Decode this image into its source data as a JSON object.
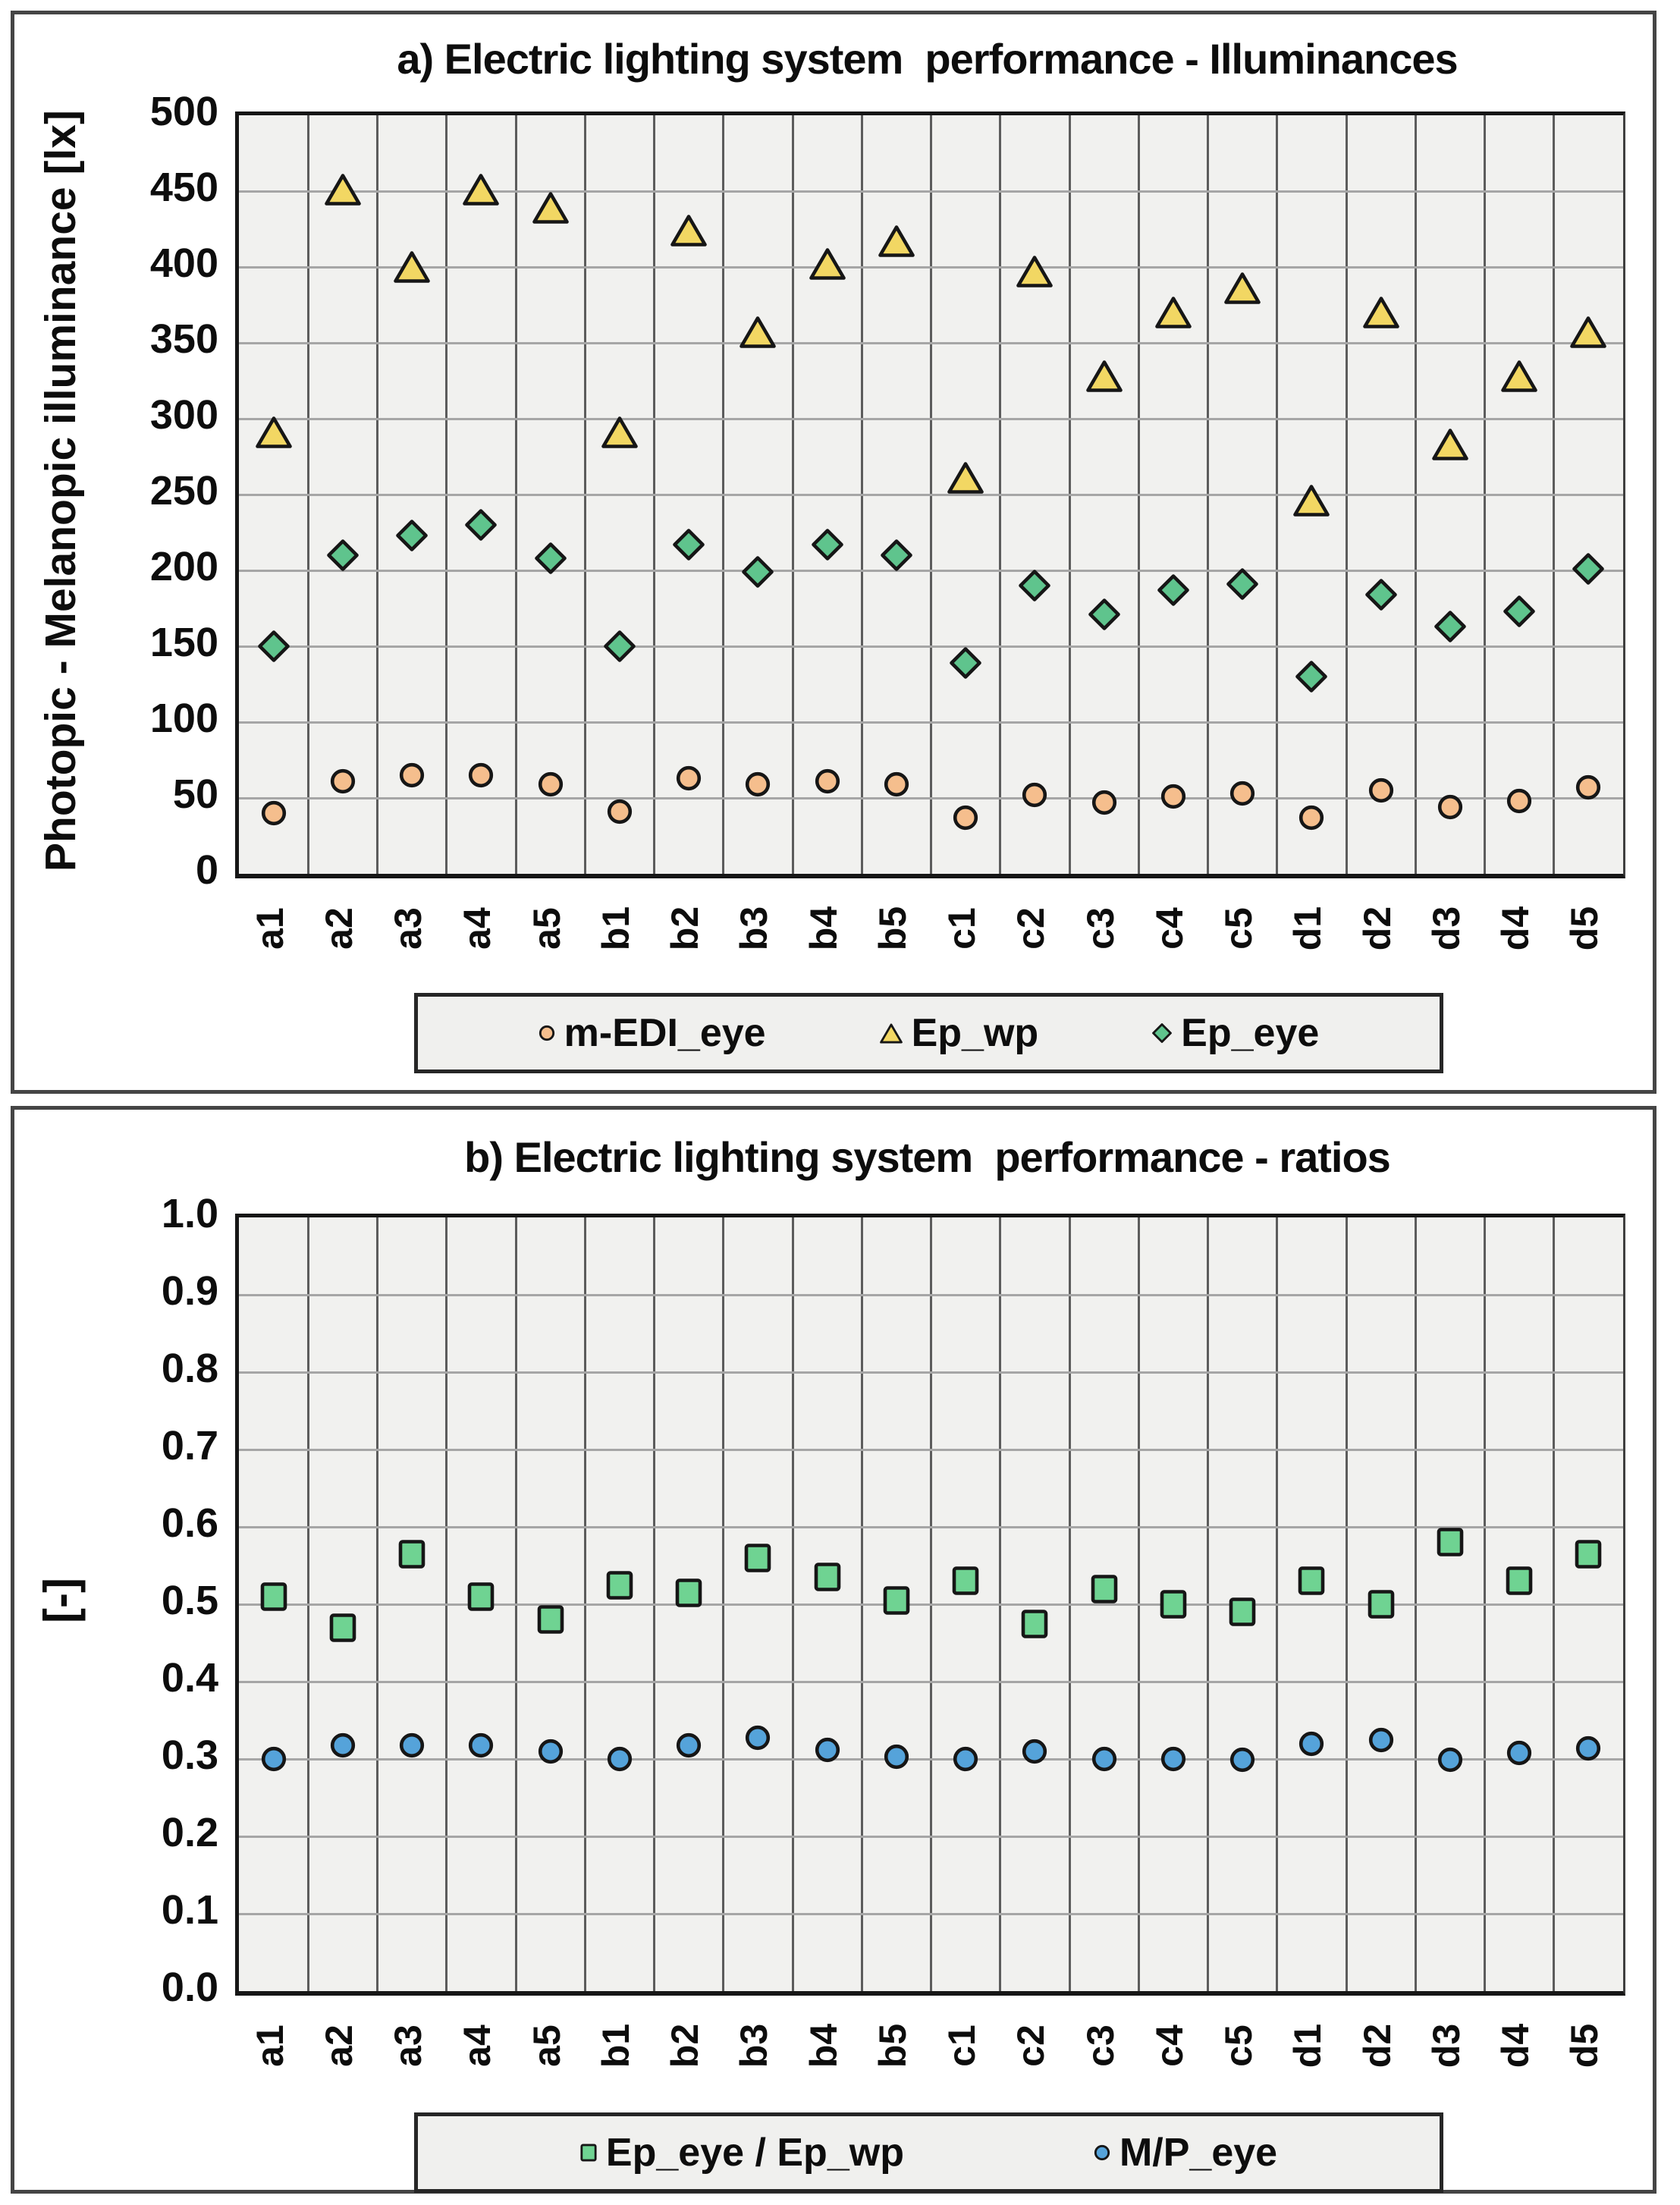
{
  "colors": {
    "panel_border": "#454545",
    "plot_background": "#f1f1ef",
    "vertical_gridline": "#5c5c5c",
    "horizontal_gridline": "#a6a6a6",
    "marker_outline": "#161616",
    "medi_eye_fill": "#f5be8d",
    "ep_wp_fill": "#f2d763",
    "ep_eye_fill": "#5fc48d",
    "ratio_square_fill": "#6fd392",
    "mp_eye_fill": "#55a3da",
    "text": "#0d0d0d"
  },
  "chart_data": [
    {
      "id": "illuminances",
      "type": "scatter",
      "title": "a) Electric lighting system  performance - Illuminances",
      "ylabel": "Photopic - Melanopic illuminance [lx]",
      "ylim": [
        0,
        500
      ],
      "ytick_step": 50,
      "yticks": [
        "500",
        "450",
        "400",
        "350",
        "300",
        "250",
        "200",
        "150",
        "100",
        "50",
        "0"
      ],
      "grid": true,
      "legend_position": "bottom",
      "categories": [
        "a1",
        "a2",
        "a3",
        "a4",
        "a5",
        "b1",
        "b2",
        "b3",
        "b4",
        "b5",
        "c1",
        "c2",
        "c3",
        "c4",
        "c5",
        "d1",
        "d2",
        "d3",
        "d4",
        "d5"
      ],
      "series": [
        {
          "name": "m-EDI_eye",
          "marker": "circle",
          "fill": "#f5be8d",
          "values": [
            40,
            61,
            65,
            65,
            59,
            41,
            63,
            59,
            61,
            59,
            37,
            52,
            47,
            51,
            53,
            37,
            55,
            44,
            48,
            57
          ]
        },
        {
          "name": "Ep_wp",
          "marker": "triangle",
          "fill": "#f2d763",
          "values": [
            291,
            451,
            400,
            451,
            439,
            291,
            424,
            357,
            402,
            417,
            261,
            397,
            328,
            370,
            386,
            246,
            370,
            283,
            328,
            357
          ]
        },
        {
          "name": "Ep_eye",
          "marker": "diamond",
          "fill": "#5fc48d",
          "values": [
            150,
            210,
            223,
            230,
            208,
            150,
            217,
            199,
            217,
            210,
            139,
            190,
            171,
            187,
            191,
            130,
            184,
            163,
            173,
            201
          ]
        }
      ]
    },
    {
      "id": "ratios",
      "type": "scatter",
      "title": "b) Electric lighting system  performance - ratios",
      "ylabel": "[-]",
      "ylim": [
        0,
        1
      ],
      "ytick_step": 0.1,
      "yticks": [
        "1.0",
        "0.9",
        "0.8",
        "0.7",
        "0.6",
        "0.5",
        "0.4",
        "0.3",
        "0.2",
        "0.1",
        "0.0"
      ],
      "grid": true,
      "legend_position": "bottom",
      "categories": [
        "a1",
        "a2",
        "a3",
        "a4",
        "a5",
        "b1",
        "b2",
        "b3",
        "b4",
        "b5",
        "c1",
        "c2",
        "c3",
        "c4",
        "c5",
        "d1",
        "d2",
        "d3",
        "d4",
        "d5"
      ],
      "series": [
        {
          "name": "Ep_eye / Ep_wp",
          "marker": "square",
          "fill": "#6fd392",
          "values": [
            0.51,
            0.47,
            0.565,
            0.51,
            0.48,
            0.525,
            0.515,
            0.56,
            0.535,
            0.505,
            0.53,
            0.475,
            0.52,
            0.5,
            0.49,
            0.53,
            0.5,
            0.58,
            0.53,
            0.565
          ]
        },
        {
          "name": "M/P_eye",
          "marker": "circle",
          "fill": "#55a3da",
          "values": [
            0.3,
            0.318,
            0.318,
            0.318,
            0.31,
            0.3,
            0.318,
            0.327,
            0.312,
            0.303,
            0.3,
            0.31,
            0.3,
            0.3,
            0.299,
            0.32,
            0.325,
            0.299,
            0.308,
            0.314
          ]
        }
      ]
    }
  ]
}
